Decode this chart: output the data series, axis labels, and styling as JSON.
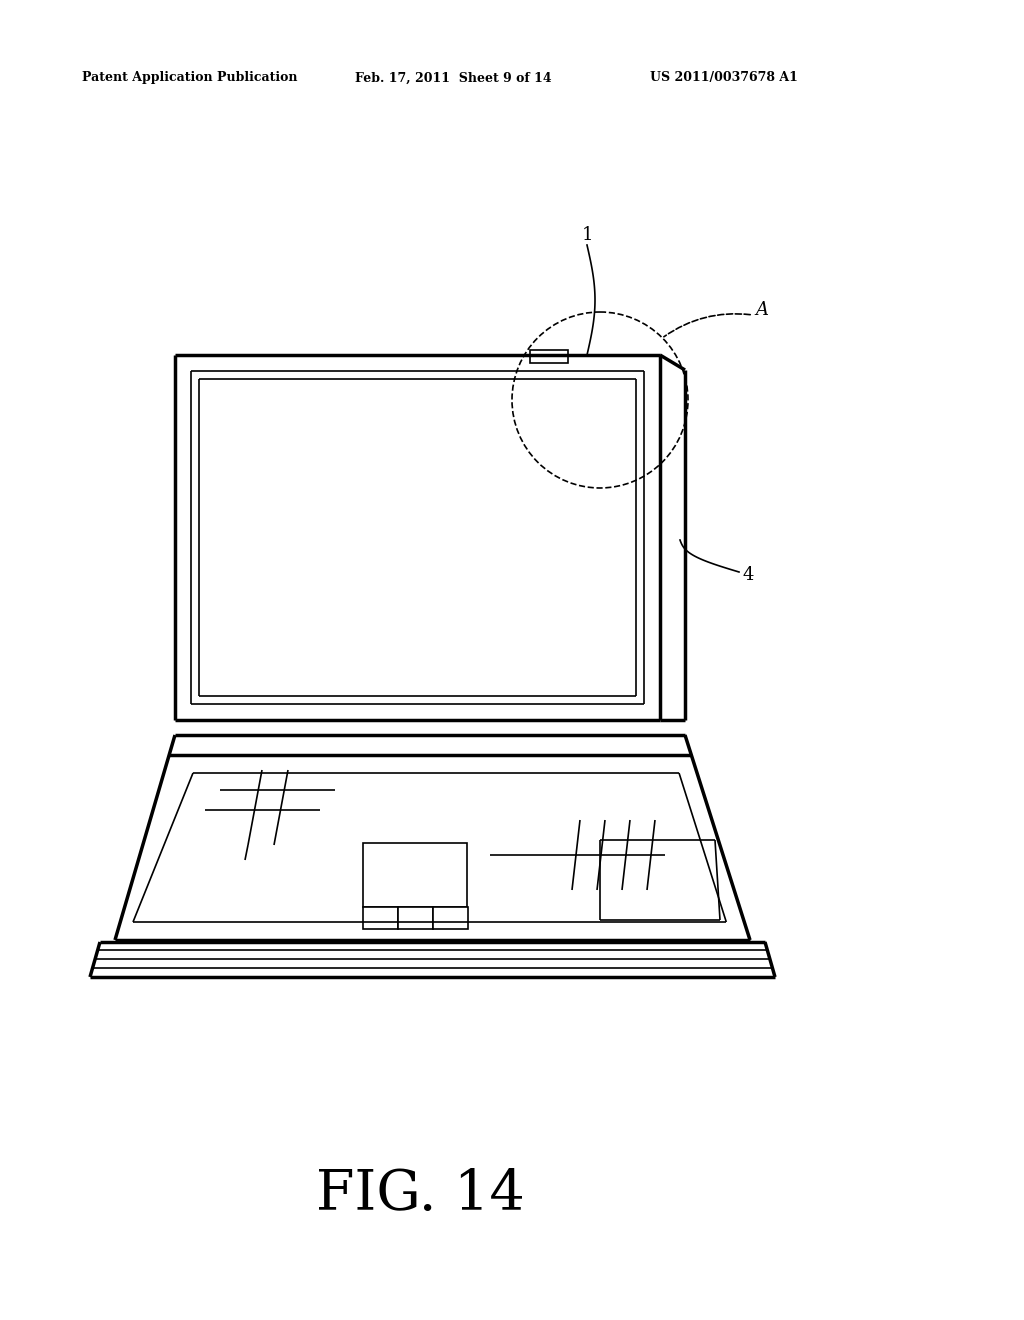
{
  "bg_color": "#ffffff",
  "header_text1": "Patent Application Publication",
  "header_text2": "Feb. 17, 2011  Sheet 9 of 14",
  "header_text3": "US 2011/0037678 A1",
  "fig_label": "FIG. 14",
  "label_1": "1",
  "label_A": "A",
  "label_4": "4",
  "line_color": "#000000",
  "lw_thin": 1.2,
  "lw_medium": 1.8,
  "lw_thick": 2.5
}
